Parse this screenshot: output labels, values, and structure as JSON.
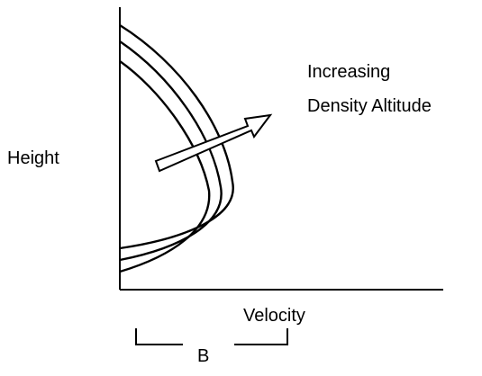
{
  "labels": {
    "y_axis": "Height",
    "x_axis": "Velocity",
    "annotation_line1": "Increasing",
    "annotation_line2": "Density Altitude",
    "bracket": "B"
  },
  "colors": {
    "line": "#000000",
    "background": "#ffffff"
  }
}
